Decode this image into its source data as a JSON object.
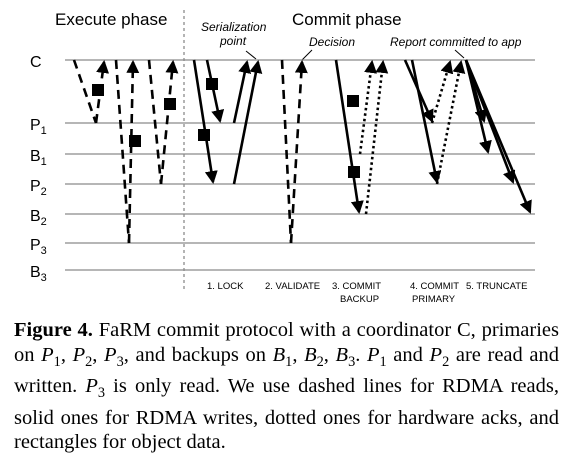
{
  "phases": {
    "execute": "Execute phase",
    "commit": "Commit phase"
  },
  "annotations": {
    "serialization_line1": "Serialization",
    "serialization_line2": "point",
    "decision": "Decision",
    "report": "Report committed to app"
  },
  "rows": [
    {
      "base": "C",
      "sub": ""
    },
    {
      "base": "P",
      "sub": "1"
    },
    {
      "base": "B",
      "sub": "1"
    },
    {
      "base": "P",
      "sub": "2"
    },
    {
      "base": "B",
      "sub": "2"
    },
    {
      "base": "P",
      "sub": "3"
    },
    {
      "base": "B",
      "sub": "3"
    }
  ],
  "steps": {
    "lock": "1. LOCK",
    "validate": "2. VALIDATE",
    "commit_backup_1": "3. COMMIT",
    "commit_backup_2": "BACKUP",
    "commit_primary_1": "4. COMMIT",
    "commit_primary_2": "PRIMARY",
    "truncate": "5. TRUNCATE"
  },
  "caption": {
    "label": "Figure 4.",
    "t1": " FaRM commit protocol with a coordinator C, primaries on ",
    "p1": "P",
    "p1s": "1",
    "t2": ", ",
    "p2": "P",
    "p2s": "2",
    "t3": ", ",
    "p3": "P",
    "p3s": "3",
    "t4": ", and backups on ",
    "b1": "B",
    "b1s": "1",
    "t5": ", ",
    "b2": "B",
    "b2s": "2",
    "t6": ", ",
    "b3": "B",
    "b3s": "3",
    "t7": ". ",
    "q1": "P",
    "q1s": "1",
    "t8": " and ",
    "q2": "P",
    "q2s": "2",
    "t9": " are read and written. ",
    "q3": "P",
    "q3s": "3",
    "t10": " is only read. We use dashed lines for RDMA reads, solid ones for RDMA writes, dotted ones for hardware acks, and rectangles for object data."
  }
}
